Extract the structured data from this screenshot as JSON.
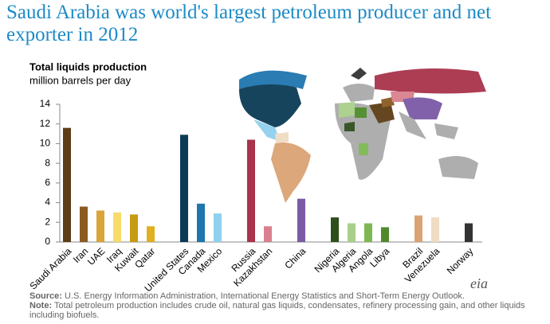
{
  "chart_data": {
    "type": "bar",
    "title": "Saudi Arabia was world's largest petroleum producer and net exporter in 2012",
    "y_label": "Total liquids production",
    "y_unit": "million barrels per day",
    "categories": [
      "Saudi Arabia",
      "Iran",
      "UAE",
      "Iraq",
      "Kuwait",
      "Qatar",
      null,
      "United States",
      "Canada",
      "Mexico",
      null,
      "Russia",
      "Kazakhstan",
      null,
      "China",
      null,
      "Nigeria",
      "Algeria",
      "Angola",
      "Libya",
      null,
      "Brazil",
      "Venezuela",
      null,
      "Norway"
    ],
    "values": [
      11.6,
      3.6,
      3.2,
      3.0,
      2.8,
      1.6,
      null,
      10.9,
      3.9,
      2.9,
      null,
      10.4,
      1.6,
      null,
      4.4,
      null,
      2.5,
      1.9,
      1.9,
      1.5,
      null,
      2.7,
      2.5,
      null,
      1.9
    ],
    "colors": [
      "#5c3d16",
      "#8c5a21",
      "#d9a43a",
      "#f7dc6a",
      "#c89a12",
      "#e0b020",
      null,
      "#0b3a55",
      "#1f75ae",
      "#8fd0ee",
      null,
      "#a8334a",
      "#d9808e",
      null,
      "#7b5aa6",
      null,
      "#2e4e1c",
      "#a9cf8a",
      "#7db852",
      "#4f8a2b",
      null,
      "#dba373",
      "#f0dcc4",
      null,
      "#333333"
    ],
    "ylim": [
      0,
      14
    ],
    "yticks": [
      0,
      2,
      4,
      6,
      8,
      10,
      12,
      14
    ],
    "source_label": "Source:",
    "source": "U.S. Energy Information Administration, International Energy Statistics and Short-Term Energy Outlook.",
    "note_label": "Note:",
    "note": "Total petroleum production includes crude oil, natural gas liquids, condensates, refinery processing gain, and other liquids including biofuels.",
    "logo": "eia"
  }
}
